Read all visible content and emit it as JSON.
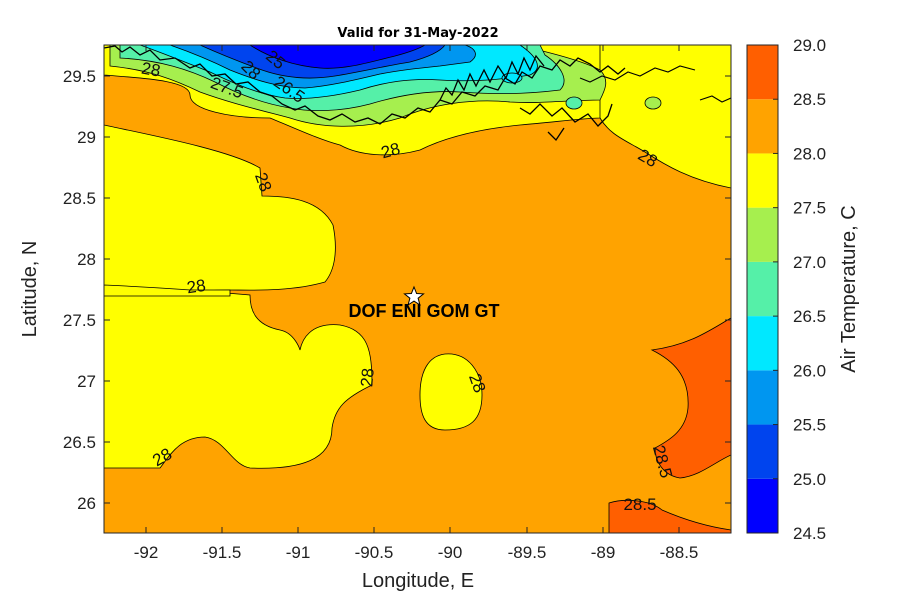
{
  "title": "Valid for 31-May-2022",
  "xlabel": "Longitude, E",
  "ylabel": "Latitude, N",
  "x_ticks": [
    "-92",
    "-91.5",
    "-91",
    "-90.5",
    "-90",
    "-89.5",
    "-89",
    "-88.5"
  ],
  "y_ticks": [
    "26",
    "26.5",
    "27",
    "27.5",
    "28",
    "28.5",
    "29",
    "29.5"
  ],
  "colorbar": {
    "label": "Air Temperature, C",
    "ticks": [
      "24.5",
      "25.0",
      "25.5",
      "26.0",
      "26.5",
      "27.0",
      "27.5",
      "28.0",
      "28.5",
      "29.0"
    ],
    "levels": [
      {
        "from": 24.5,
        "to": 25.0,
        "color": "#0000ff"
      },
      {
        "from": 25.0,
        "to": 25.5,
        "color": "#0044ee"
      },
      {
        "from": 25.5,
        "to": 26.0,
        "color": "#0096f0"
      },
      {
        "from": 26.0,
        "to": 26.5,
        "color": "#00e8ff"
      },
      {
        "from": 26.5,
        "to": 27.0,
        "color": "#55f0a8"
      },
      {
        "from": 27.0,
        "to": 27.5,
        "color": "#a6ef4e"
      },
      {
        "from": 27.5,
        "to": 28.0,
        "color": "#ffff00"
      },
      {
        "from": 28.0,
        "to": 28.5,
        "color": "#ffa300"
      },
      {
        "from": 28.5,
        "to": 29.0,
        "color": "#ff5f00"
      }
    ]
  },
  "site": {
    "label": "DOF ENI GOM GT",
    "lon": -90.3,
    "lat": 27.68,
    "marker": "star-icon"
  },
  "contour_labels": [
    "28",
    "28",
    "28",
    "28",
    "28",
    "28",
    "28",
    "28",
    "28.5",
    "28.5",
    "27.5",
    "26.5",
    "25",
    "28"
  ],
  "chart_data": {
    "type": "heatmap",
    "title": "Valid for 31-May-2022",
    "xlabel": "Longitude, E",
    "ylabel": "Latitude, N",
    "xlim": [
      -92.3,
      -88.2
    ],
    "ylim": [
      25.75,
      29.75
    ],
    "colorbar_range": [
      24.5,
      29.0
    ],
    "regions": [
      {
        "range": "28.0-28.5",
        "where": "central Gulf and open water (dominant)"
      },
      {
        "range": "27.5-28.0",
        "where": "western area west of -90.8, patch near -90, north coastal strip, northeast corner"
      },
      {
        "range": "28.5-29.0",
        "where": "southeast corner near -88.5, 26-27.4 N"
      },
      {
        "range": "24.5-27.5",
        "where": "Louisiana coast / land, north of 29.4 N"
      }
    ],
    "site": {
      "name": "DOF ENI GOM GT",
      "lon": -90.3,
      "lat": 27.68
    }
  }
}
